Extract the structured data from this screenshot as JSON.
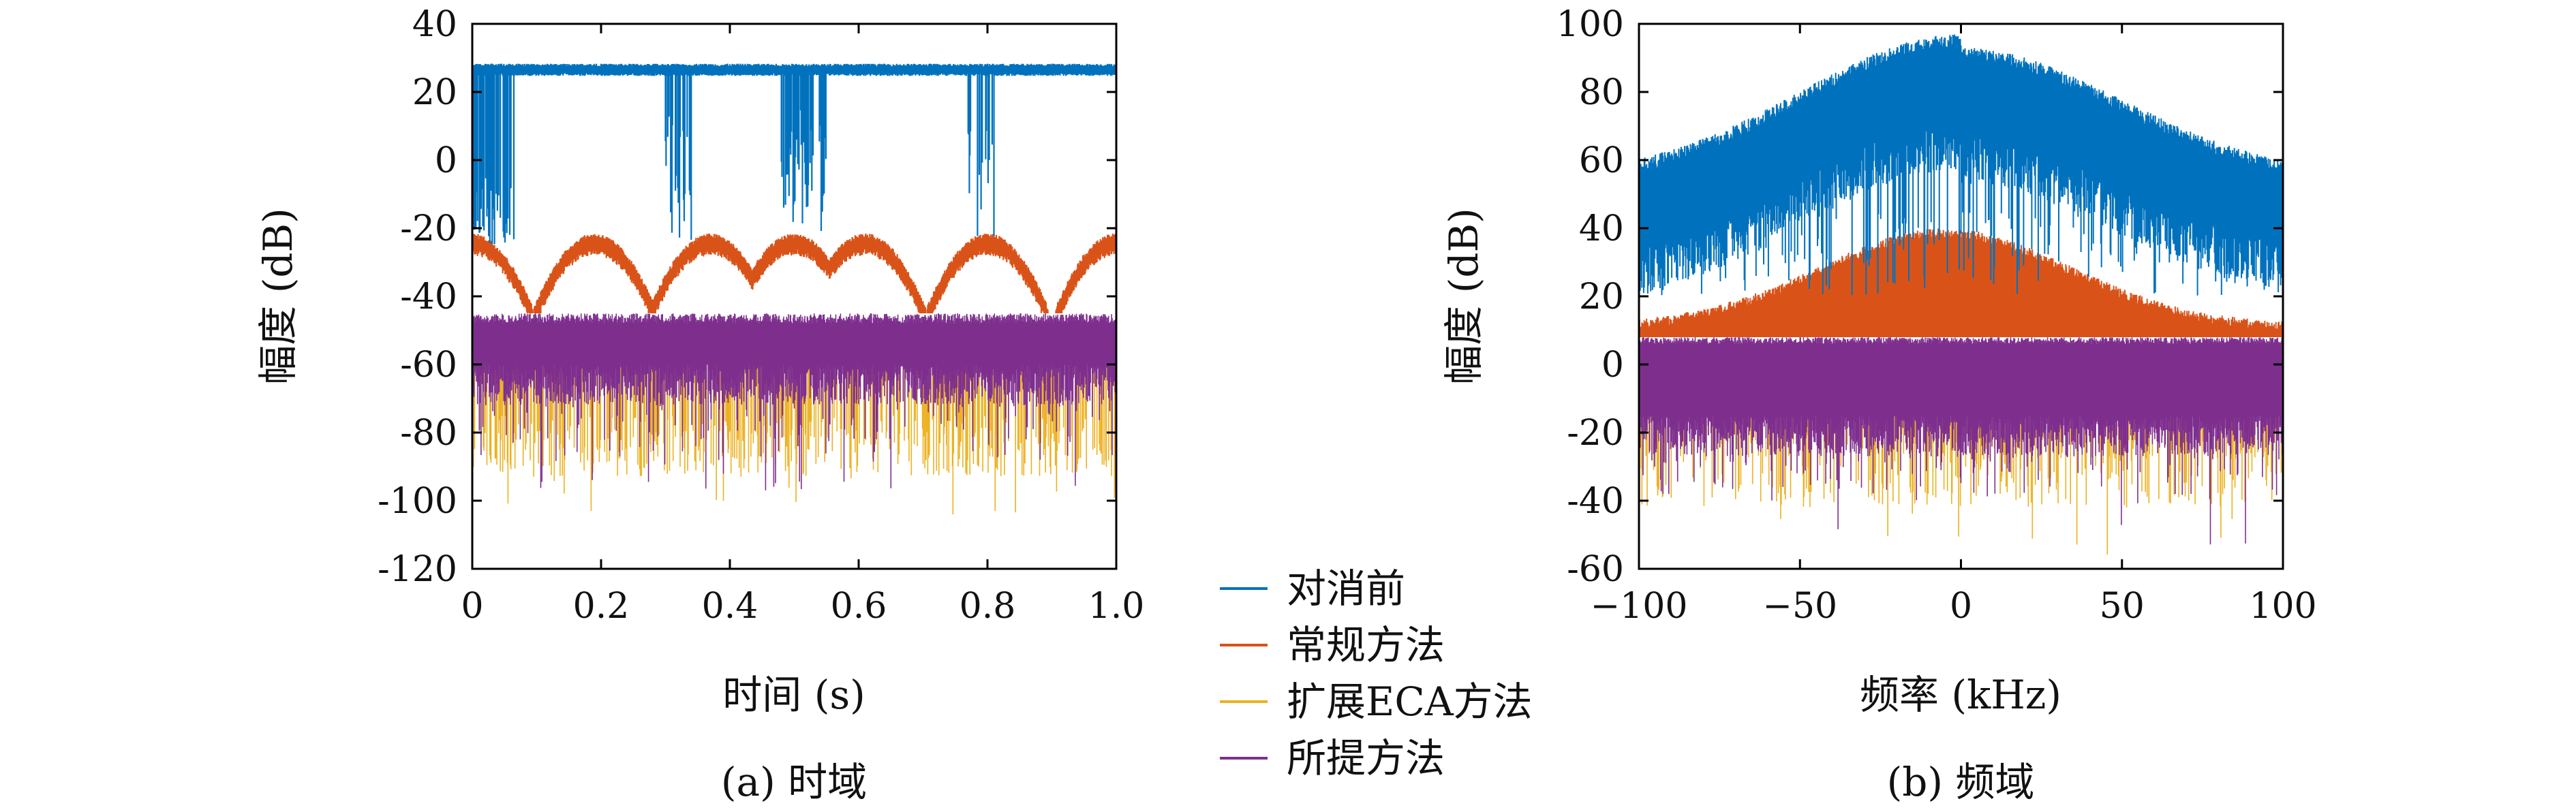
{
  "colors": {
    "before": "#0072BD",
    "conventional": "#D95319",
    "extended_eca": "#EDB120",
    "proposed": "#7E2F8E"
  },
  "legend": {
    "items": [
      {
        "label": "对消前",
        "color": "#0072BD"
      },
      {
        "label": "常规方法",
        "color": "#D95319"
      },
      {
        "label": "扩展ECA方法",
        "color": "#EDB120"
      },
      {
        "label": "所提方法",
        "color": "#7E2F8E"
      }
    ]
  },
  "chart_data": [
    {
      "type": "line",
      "caption": "(a) 时域",
      "xlabel": "时间 (s)",
      "ylabel": "幅度 (dB)",
      "xlim": [
        0,
        1.0
      ],
      "ylim": [
        -120,
        40
      ],
      "xticks": [
        0,
        0.2,
        0.4,
        0.6,
        0.8,
        1.0
      ],
      "xtick_labels": [
        "0",
        "0.2",
        "0.4",
        "0.6",
        "0.8",
        "1.0"
      ],
      "yticks": [
        40,
        20,
        0,
        -20,
        -40,
        -60,
        -80,
        -100,
        -120
      ],
      "ytick_labels": [
        "40",
        "20",
        "0",
        "-20",
        "-40",
        "-60",
        "-80",
        "-100",
        "-120"
      ],
      "series": [
        {
          "name": "对消前",
          "level_db": 27,
          "dips": [
            [
              0.0,
              0.07
            ],
            [
              0.3,
              0.34
            ],
            [
              0.48,
              0.55
            ],
            [
              0.77,
              0.81
            ]
          ],
          "dip_floor_db": -20
        },
        {
          "name": "常规方法",
          "envelope_min_db": -45,
          "envelope_max_db": -22,
          "lobe_centers": [
            0.0,
            0.19,
            0.37,
            0.5,
            0.61,
            0.8,
            1.0
          ]
        },
        {
          "name": "扩展ECA方法",
          "range_db": [
            -105,
            -45
          ]
        },
        {
          "name": "所提方法",
          "range_db": [
            -107,
            -45
          ]
        }
      ]
    },
    {
      "type": "line",
      "caption": "(b) 频域",
      "xlabel": "频率 (kHz)",
      "ylabel": "幅度 (dB)",
      "xlim": [
        -100,
        100
      ],
      "ylim": [
        -60,
        100
      ],
      "xticks": [
        -100,
        -50,
        0,
        50,
        100
      ],
      "xtick_labels": [
        "−100",
        "−50",
        "0",
        "50",
        "100"
      ],
      "yticks": [
        100,
        80,
        60,
        40,
        20,
        0,
        -20,
        -40,
        -60
      ],
      "ytick_labels": [
        "100",
        "80",
        "60",
        "40",
        "20",
        "0",
        "-20",
        "-40",
        "-60"
      ],
      "series": [
        {
          "name": "对消前",
          "peak_db": 95,
          "edge_db": 55,
          "floor_db": 20
        },
        {
          "name": "常规方法",
          "peak_db": 40,
          "edge_db": 12,
          "floor_db": 8
        },
        {
          "name": "扩展ECA方法",
          "range_db": [
            -58,
            8
          ]
        },
        {
          "name": "所提方法",
          "range_db": [
            -57,
            9
          ]
        }
      ]
    }
  ]
}
